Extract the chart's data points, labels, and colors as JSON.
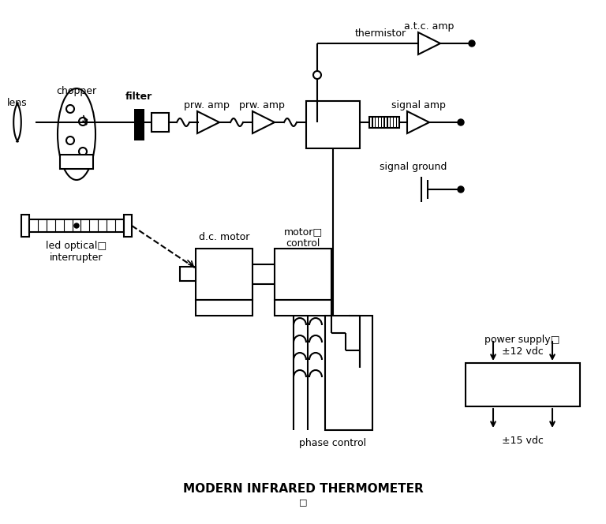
{
  "title": "MODERN INFRARED THERMOMETER",
  "bg_color": "#ffffff",
  "line_color": "#000000",
  "lw": 1.5,
  "labels": {
    "lens": "lens",
    "chopper": "chopper",
    "filter": "filter",
    "prw_amp1": "prw. amp",
    "prw_amp2": "prw. amp",
    "signal_amp": "signal amp",
    "atc_amp": "a.t.c. amp",
    "thermistor": "thermistor",
    "signal_ground": "signal ground",
    "dc_motor": "d.c. motor",
    "motor_control": "motor□\ncontrol",
    "phase_control": "phase control",
    "power_supply": "power supply□\n±12 vdc",
    "pm15vdc": "±15 vdc",
    "led": "led optical□\ninterrupter"
  },
  "figsize": [
    7.68,
    6.64
  ],
  "dpi": 100
}
